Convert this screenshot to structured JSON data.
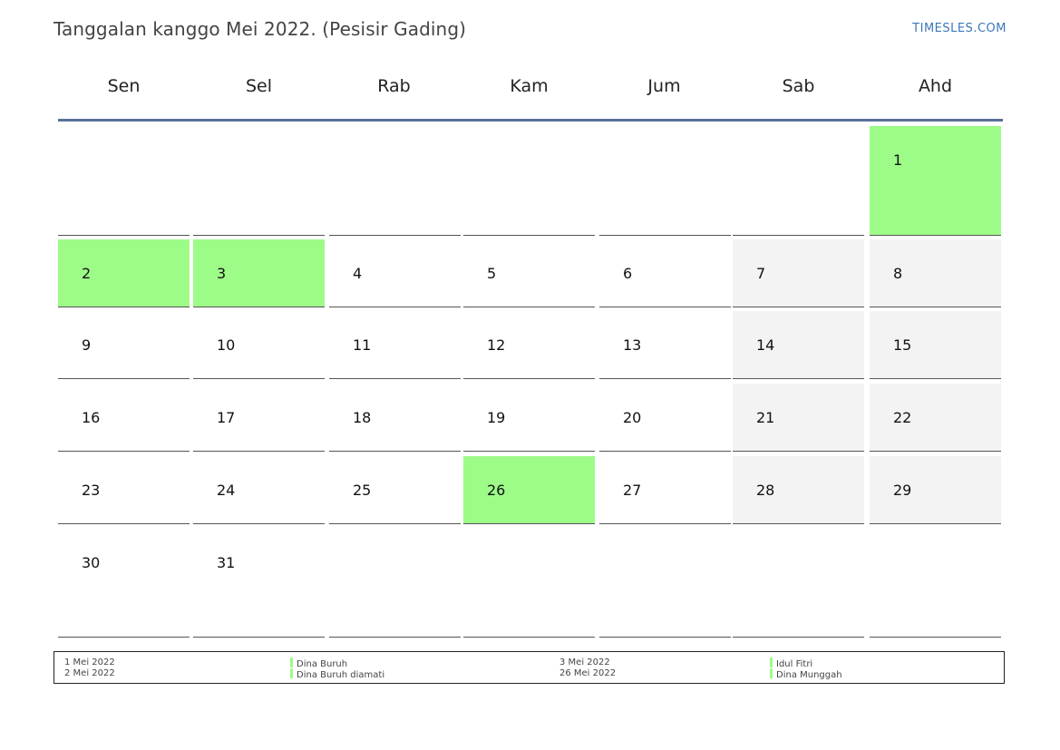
{
  "header": {
    "title": "Tanggalan kanggo Mei 2022. (Pesisir Gading)",
    "brand": "TIMESLES.COM"
  },
  "weekdays": [
    "Sen",
    "Sel",
    "Rab",
    "Kam",
    "Jum",
    "Sab",
    "Ahd"
  ],
  "colors": {
    "holiday": "#9dfc87",
    "weekend": "#f3f3f3",
    "header_rule": "#5a7198",
    "brand": "#3a78b8"
  },
  "calendar": {
    "month_days": 31,
    "first_weekday_index": 6,
    "holiday_days": [
      1,
      2,
      3,
      26
    ],
    "weekend_columns": [
      5,
      6
    ]
  },
  "legend": {
    "dates": [
      "1 Mei 2022",
      "2 Mei 2022",
      "3 Mei 2022",
      "26 Mei 2022"
    ],
    "names": [
      "Dina Buruh",
      "Dina Buruh diamati",
      "Idul Fitri",
      "Dina Munggah"
    ]
  }
}
